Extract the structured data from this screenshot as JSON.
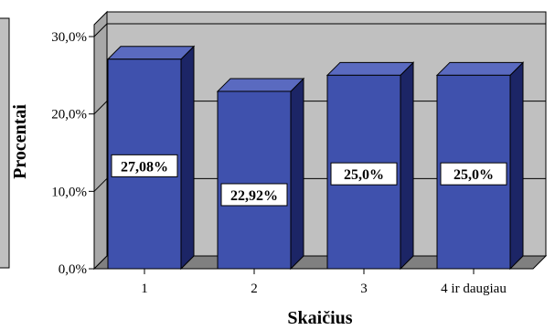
{
  "chart_data": {
    "type": "bar",
    "categories": [
      "1",
      "2",
      "3",
      "4 ir daugiau"
    ],
    "values": [
      27.08,
      22.92,
      25.0,
      25.0
    ],
    "data_labels": [
      "27,08%",
      "22,92%",
      "25,0%",
      "25,0%"
    ],
    "yticks": [
      0,
      10,
      20,
      30
    ],
    "ytick_labels": [
      "0,0%",
      "10,0%",
      "20,0%",
      "30,0%"
    ],
    "ylim": [
      0,
      30
    ],
    "xlabel": "Skaičius",
    "ylabel": "Procentai",
    "grid": true,
    "legend": "none",
    "colors": {
      "bar_front": "#3f51ad",
      "bar_side": "#1c2566",
      "bar_top": "#5a6ac0",
      "wall": "#c0c0c0",
      "floor": "#808080",
      "label_box": "#ffffff"
    }
  }
}
